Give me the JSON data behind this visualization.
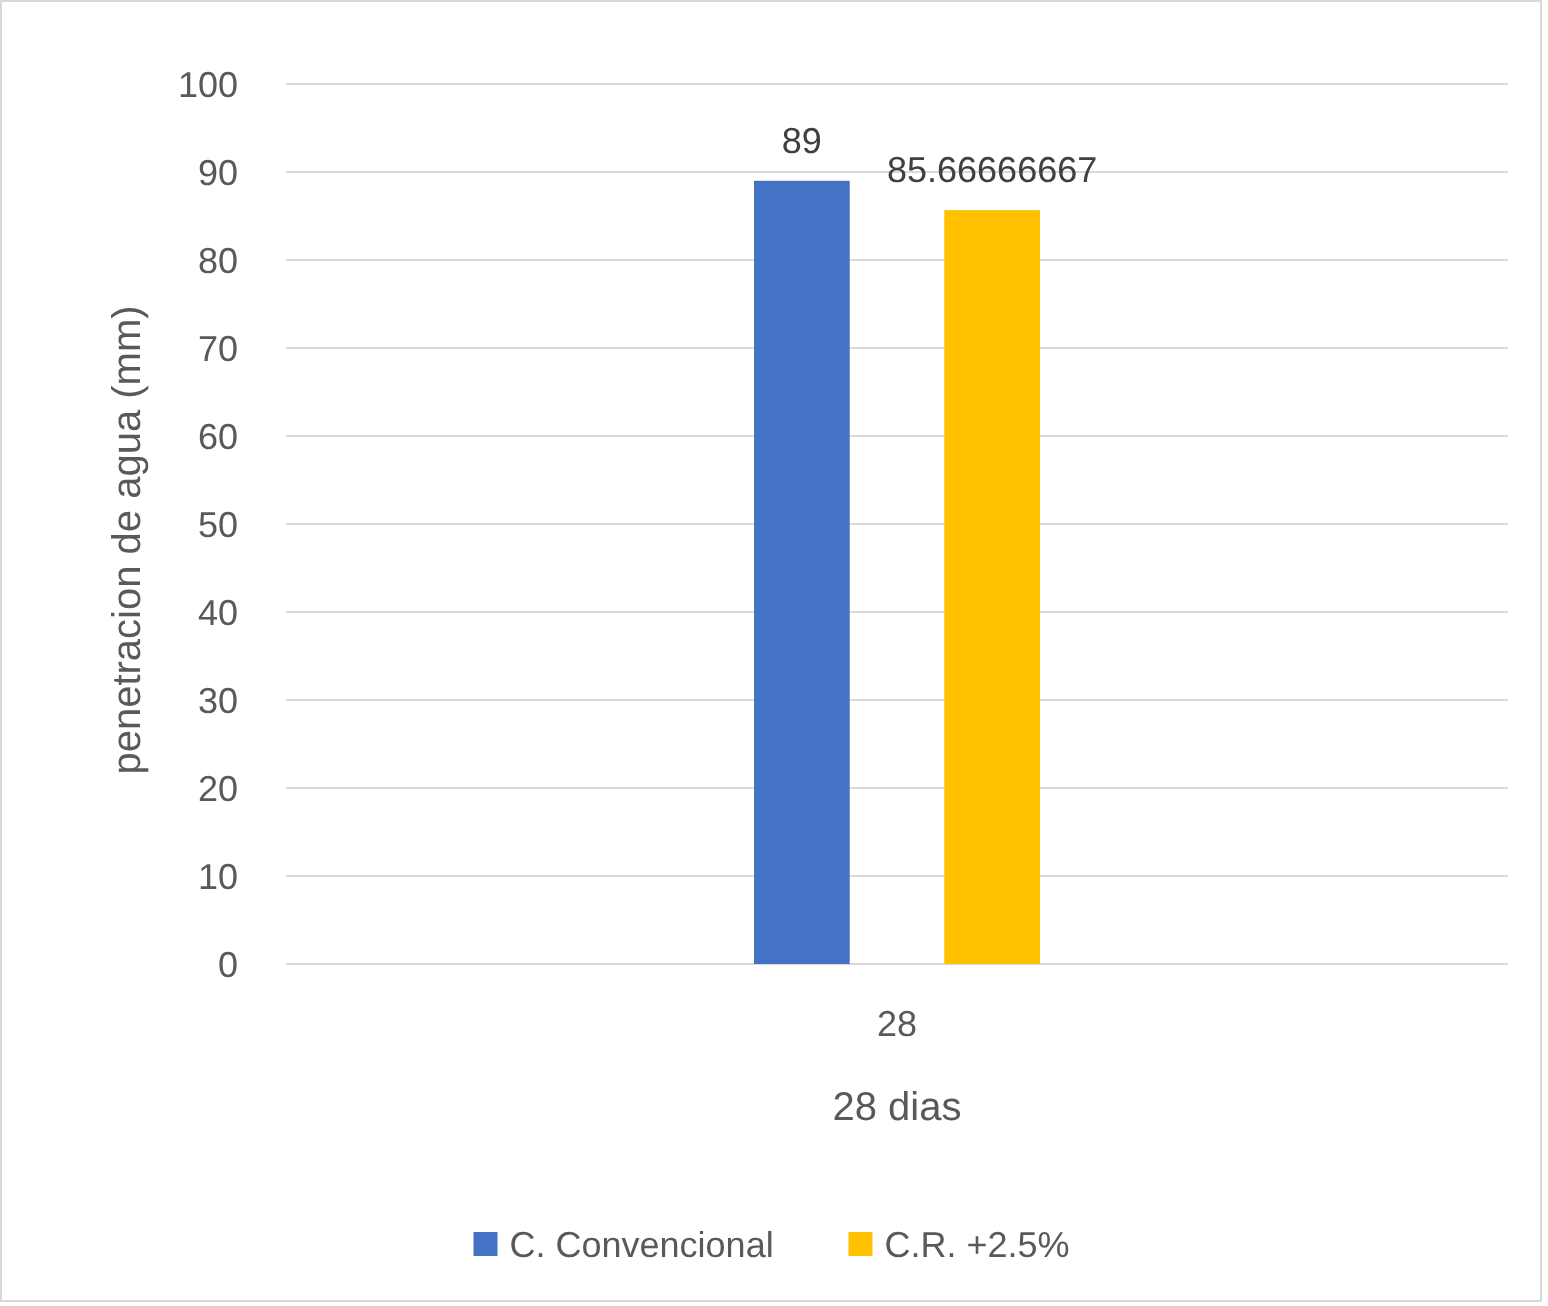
{
  "chart_data": {
    "type": "bar",
    "ylabel": "penetracion de agua (mm)",
    "xlabel": "28 dias",
    "categories": [
      "28"
    ],
    "series": [
      {
        "name": "C. Convencional",
        "color": "#4472c4",
        "values": [
          89
        ]
      },
      {
        "name": "C.R. +2.5%",
        "color": "#ffc000",
        "values": [
          85.66666667
        ]
      }
    ],
    "ylim": [
      0,
      100
    ],
    "yticks": [
      0,
      10,
      20,
      30,
      40,
      50,
      60,
      70,
      80,
      90,
      100
    ],
    "grid": "y",
    "legend": "bottom",
    "data_labels": true
  }
}
